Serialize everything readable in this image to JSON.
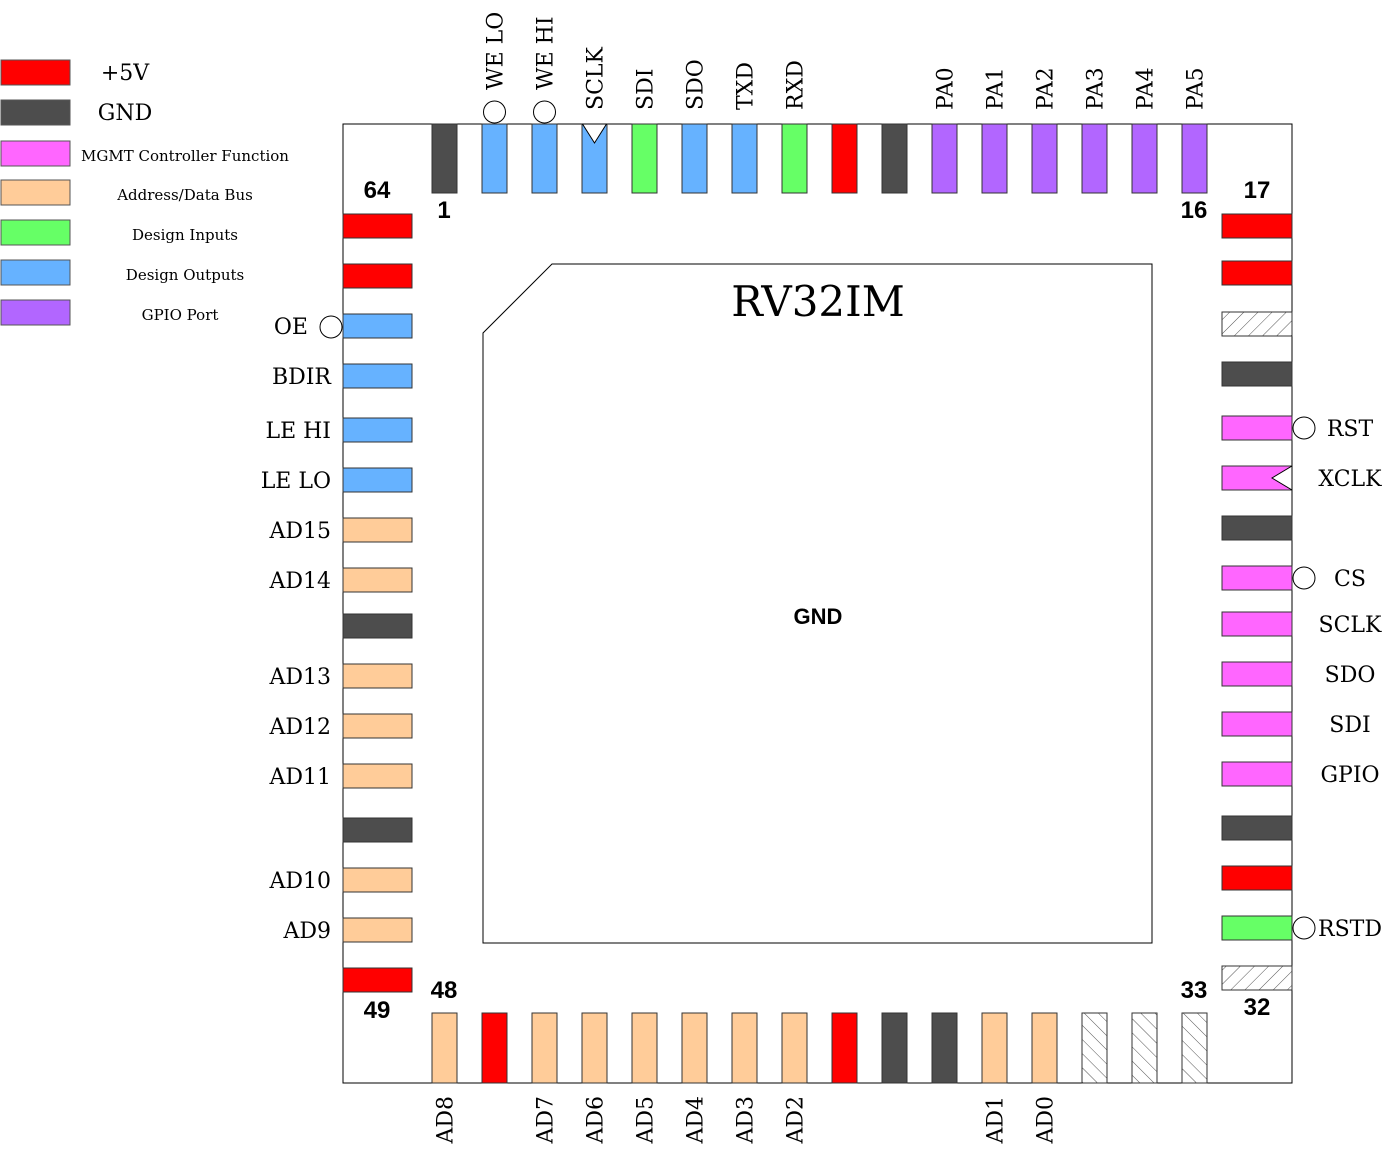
{
  "colors": {
    "power": "#ff0000",
    "gnd": "#4d4d4d",
    "mgmt": "#ff66ff",
    "bus": "#ffcc99",
    "input": "#66ff66",
    "output": "#66b2ff",
    "gpio": "#b266ff",
    "nc": "hatch"
  },
  "legend": [
    {
      "label": "+5V",
      "color": "power"
    },
    {
      "label": "GND",
      "color": "gnd"
    },
    {
      "label": "MGMT Controller Function",
      "color": "mgmt"
    },
    {
      "label": "Address/Data Bus",
      "color": "bus"
    },
    {
      "label": "Design Inputs",
      "color": "input"
    },
    {
      "label": "Design Outputs",
      "color": "output"
    },
    {
      "label": "GPIO Port",
      "color": "gpio"
    }
  ],
  "chip": {
    "title": "RV32IM",
    "center_label": "GND"
  },
  "pin_numbers": [
    "1",
    "16",
    "17",
    "32",
    "33",
    "48",
    "49",
    "64"
  ],
  "top_pins": [
    {
      "label": "",
      "color": "gnd",
      "marker": ""
    },
    {
      "label": "WE LO",
      "color": "output",
      "marker": "bubble"
    },
    {
      "label": "WE HI",
      "color": "output",
      "marker": "bubble"
    },
    {
      "label": "SCLK",
      "color": "output",
      "marker": "clock"
    },
    {
      "label": "SDI",
      "color": "input",
      "marker": ""
    },
    {
      "label": "SDO",
      "color": "output",
      "marker": ""
    },
    {
      "label": "TXD",
      "color": "output",
      "marker": ""
    },
    {
      "label": "RXD",
      "color": "input",
      "marker": ""
    },
    {
      "label": "",
      "color": "power",
      "marker": ""
    },
    {
      "label": "",
      "color": "gnd",
      "marker": ""
    },
    {
      "label": "PA0",
      "color": "gpio",
      "marker": ""
    },
    {
      "label": "PA1",
      "color": "gpio",
      "marker": ""
    },
    {
      "label": "PA2",
      "color": "gpio",
      "marker": ""
    },
    {
      "label": "PA3",
      "color": "gpio",
      "marker": ""
    },
    {
      "label": "PA4",
      "color": "gpio",
      "marker": ""
    },
    {
      "label": "PA5",
      "color": "gpio",
      "marker": ""
    }
  ],
  "right_pins": [
    {
      "label": "",
      "color": "power",
      "marker": ""
    },
    {
      "label": "",
      "color": "power",
      "marker": ""
    },
    {
      "label": "",
      "color": "nc",
      "marker": ""
    },
    {
      "label": "",
      "color": "gnd",
      "marker": ""
    },
    {
      "label": "RST",
      "color": "mgmt",
      "marker": "bubble"
    },
    {
      "label": "XCLK",
      "color": "mgmt",
      "marker": "clock"
    },
    {
      "label": "",
      "color": "gnd",
      "marker": ""
    },
    {
      "label": "CS",
      "color": "mgmt",
      "marker": "bubble"
    },
    {
      "label": "SCLK",
      "color": "mgmt",
      "marker": ""
    },
    {
      "label": "SDO",
      "color": "mgmt",
      "marker": ""
    },
    {
      "label": "SDI",
      "color": "mgmt",
      "marker": ""
    },
    {
      "label": "GPIO",
      "color": "mgmt",
      "marker": ""
    },
    {
      "label": "",
      "color": "gnd",
      "marker": ""
    },
    {
      "label": "",
      "color": "power",
      "marker": ""
    },
    {
      "label": "RSTD",
      "color": "input",
      "marker": "bubble"
    },
    {
      "label": "",
      "color": "nc",
      "marker": ""
    }
  ],
  "bottom_pins": [
    {
      "label": "AD8",
      "color": "bus",
      "marker": ""
    },
    {
      "label": "",
      "color": "power",
      "marker": ""
    },
    {
      "label": "AD7",
      "color": "bus",
      "marker": ""
    },
    {
      "label": "AD6",
      "color": "bus",
      "marker": ""
    },
    {
      "label": "AD5",
      "color": "bus",
      "marker": ""
    },
    {
      "label": "AD4",
      "color": "bus",
      "marker": ""
    },
    {
      "label": "AD3",
      "color": "bus",
      "marker": ""
    },
    {
      "label": "AD2",
      "color": "bus",
      "marker": ""
    },
    {
      "label": "",
      "color": "power",
      "marker": ""
    },
    {
      "label": "",
      "color": "gnd",
      "marker": ""
    },
    {
      "label": "",
      "color": "gnd",
      "marker": ""
    },
    {
      "label": "AD1",
      "color": "bus",
      "marker": ""
    },
    {
      "label": "AD0",
      "color": "bus",
      "marker": ""
    },
    {
      "label": "",
      "color": "nc",
      "marker": ""
    },
    {
      "label": "",
      "color": "nc",
      "marker": ""
    },
    {
      "label": "",
      "color": "nc",
      "marker": ""
    }
  ],
  "left_pins": [
    {
      "label": "",
      "color": "power",
      "marker": ""
    },
    {
      "label": "",
      "color": "power",
      "marker": ""
    },
    {
      "label": "OE",
      "color": "output",
      "marker": "bubble"
    },
    {
      "label": "BDIR",
      "color": "output",
      "marker": ""
    },
    {
      "label": "LE HI",
      "color": "output",
      "marker": ""
    },
    {
      "label": "LE LO",
      "color": "output",
      "marker": ""
    },
    {
      "label": "AD15",
      "color": "bus",
      "marker": ""
    },
    {
      "label": "AD14",
      "color": "bus",
      "marker": ""
    },
    {
      "label": "",
      "color": "gnd",
      "marker": ""
    },
    {
      "label": "AD13",
      "color": "bus",
      "marker": ""
    },
    {
      "label": "AD12",
      "color": "bus",
      "marker": ""
    },
    {
      "label": "AD11",
      "color": "bus",
      "marker": ""
    },
    {
      "label": "",
      "color": "gnd",
      "marker": ""
    },
    {
      "label": "AD10",
      "color": "bus",
      "marker": ""
    },
    {
      "label": "AD9",
      "color": "bus",
      "marker": ""
    },
    {
      "label": "",
      "color": "power",
      "marker": ""
    }
  ]
}
